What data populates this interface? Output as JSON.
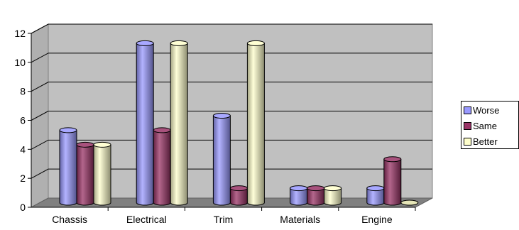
{
  "chart_data": {
    "type": "bar",
    "categories": [
      "Chassis",
      "Electrical",
      "Trim",
      "Materials",
      "Engine"
    ],
    "series": [
      {
        "name": "Worse",
        "values": [
          5,
          11,
          6,
          1,
          1
        ],
        "color": "#9999ff"
      },
      {
        "name": "Same",
        "values": [
          4,
          5,
          1,
          1,
          3
        ],
        "color": "#993366"
      },
      {
        "name": "Better",
        "values": [
          4,
          11,
          11,
          1,
          0
        ],
        "color": "#ffffcc"
      }
    ],
    "ylim": [
      0,
      12
    ],
    "yticks": [
      "0",
      "2",
      "4",
      "6",
      "8",
      "10",
      "12"
    ],
    "grid": true,
    "legend_position": "right",
    "style": "3d-cylinder",
    "plot_background": "#c0c0c0",
    "floor_color": "#808080"
  }
}
